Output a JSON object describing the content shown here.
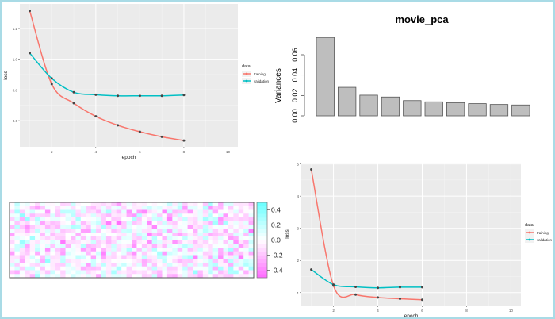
{
  "chart_data": [
    {
      "type": "line",
      "xlabel": "epoch",
      "ylabel": "loss",
      "xlim": [
        0.55,
        10.45
      ],
      "ylim": [
        0.43,
        1.36
      ],
      "xticks": [
        2,
        4,
        6,
        8,
        10
      ],
      "yticks": [
        0.6,
        0.8,
        1.0,
        1.2
      ],
      "ytick_labels": [
        "0.6",
        "0.8",
        "1.0",
        "1.2"
      ],
      "grid": true,
      "legend_title": "data",
      "legend_position": "right",
      "x": [
        1,
        2,
        3,
        4,
        5,
        6,
        7,
        8
      ],
      "series": [
        {
          "name": "training",
          "color": "#f8766d",
          "values": [
            1.315,
            0.838,
            0.714,
            0.628,
            0.57,
            0.528,
            0.495,
            0.471
          ]
        },
        {
          "name": "validation",
          "color": "#00bfc4",
          "values": [
            1.04,
            0.875,
            0.785,
            0.769,
            0.762,
            0.762,
            0.762,
            0.767
          ]
        }
      ]
    },
    {
      "type": "bar",
      "title": "movie_pca",
      "ylabel": "Variances",
      "ylim": [
        0,
        0.08
      ],
      "yticks": [
        0.0,
        0.02,
        0.04,
        0.06
      ],
      "ytick_labels": [
        "0.00",
        "0.02",
        "0.04",
        "0.06"
      ],
      "bar_color": "#bebebe",
      "values": [
        0.077,
        0.028,
        0.0203,
        0.0185,
        0.015,
        0.0138,
        0.013,
        0.012,
        0.0112,
        0.0107
      ]
    },
    {
      "type": "heatmap",
      "color_low": "#ff66ff",
      "color_mid": "#ffffff",
      "color_high": "#66ffff",
      "zlim": [
        -0.5,
        0.5
      ],
      "colorbar_ticks": [
        0.4,
        0.2,
        0.0,
        -0.2,
        -0.4
      ],
      "colorbar_labels": [
        "0.4",
        "0.2",
        "0.0",
        "-0.2",
        "-0.4"
      ]
    },
    {
      "type": "line",
      "xlabel": "epoch",
      "ylabel": "loss",
      "xlim": [
        0.55,
        10.45
      ],
      "ylim": [
        0.6,
        5.04
      ],
      "xticks": [
        2,
        4,
        6,
        8,
        10
      ],
      "yticks": [
        1,
        2,
        3,
        4,
        5
      ],
      "ytick_labels": [
        "1",
        "2",
        "3",
        "4",
        "5"
      ],
      "grid": true,
      "legend_title": "data",
      "legend_position": "right",
      "x": [
        1,
        2,
        3,
        4,
        5,
        6
      ],
      "series": [
        {
          "name": "training",
          "color": "#f8766d",
          "values": [
            4.83,
            1.22,
            0.94,
            0.85,
            0.81,
            0.78
          ]
        },
        {
          "name": "validation",
          "color": "#00bfc4",
          "values": [
            1.72,
            1.25,
            1.18,
            1.15,
            1.17,
            1.17
          ]
        }
      ]
    }
  ]
}
